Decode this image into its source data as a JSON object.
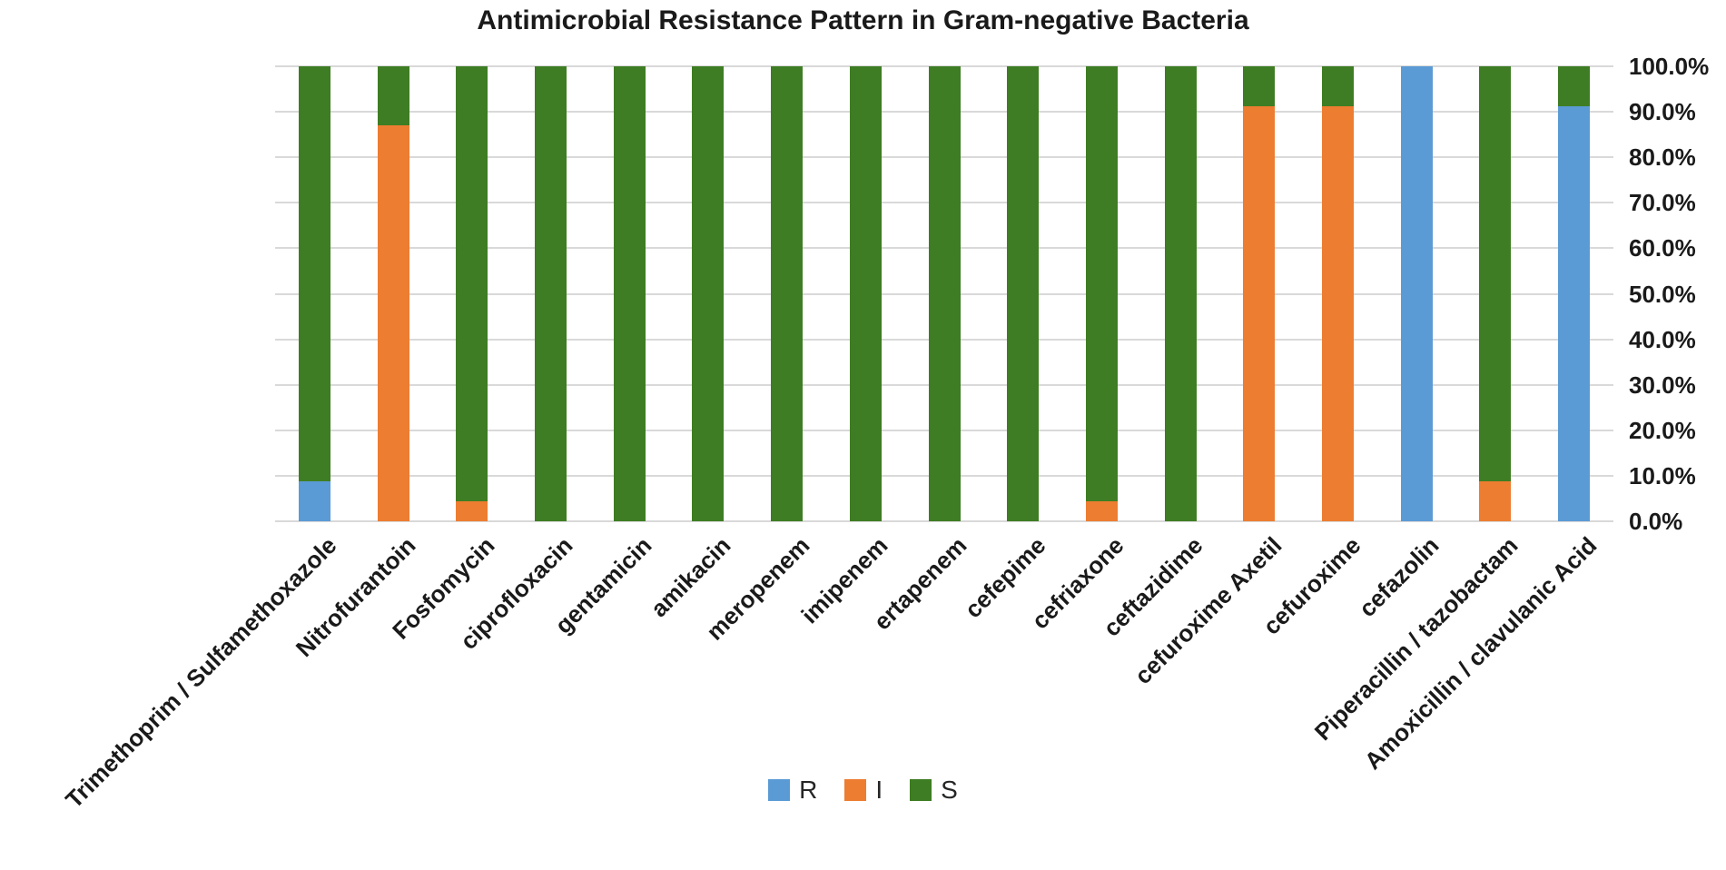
{
  "chart_data": {
    "type": "bar",
    "stacked": true,
    "title": "Antimicrobial Resistance Pattern in Gram-negative Bacteria",
    "categories": [
      "Trimethoprim / Sulfamethoxazole",
      "Nitrofurantoin",
      "Fosfomycin",
      "ciprofloxacin",
      "gentamicin",
      "amikacin",
      "meropenem",
      "imipenem",
      "ertapenem",
      "cefepime",
      "cefriaxone",
      "ceftazidime",
      "cefuroxime Axetil",
      "cefuroxime",
      "cefazolin",
      "Piperacillin / tazobactam",
      "Amoxicillin / clavulanic Acid"
    ],
    "series": [
      {
        "name": "R",
        "color": "#5B9BD5",
        "values": [
          8.7,
          0,
          0,
          0,
          0,
          0,
          0,
          0,
          0,
          0,
          0,
          0,
          0,
          0,
          100,
          0,
          91.3
        ]
      },
      {
        "name": "I",
        "color": "#ED7D31",
        "values": [
          0,
          87.0,
          4.3,
          0,
          0,
          0,
          0,
          0,
          0,
          0,
          4.3,
          0,
          91.3,
          91.3,
          0,
          8.7,
          0
        ]
      },
      {
        "name": "S",
        "color": "#3E7D23",
        "values": [
          91.3,
          13.0,
          95.7,
          100,
          100,
          100,
          100,
          100,
          100,
          100,
          95.7,
          100,
          8.7,
          8.7,
          0,
          91.3,
          8.7
        ]
      }
    ],
    "stack_order_bottom_to_top": [
      "R",
      "I",
      "S"
    ],
    "value_unit": "%",
    "ylim": [
      0,
      100
    ],
    "y_tick_step": 10,
    "y_tick_labels": [
      "100.0%",
      "90.0%",
      "80.0%",
      "70.0%",
      "60.0%",
      "50.0%",
      "40.0%",
      "30.0%",
      "20.0%",
      "10.0%",
      "0.0%"
    ],
    "y_axis_side": "right",
    "xlabel": "",
    "ylabel": "",
    "grid": true,
    "gridline_color": "#D9D9D9",
    "background_color": "#FFFFFF",
    "text_color": "#1A1A1A",
    "legend_position": "bottom",
    "legend_labels": [
      "R",
      "I",
      "S"
    ]
  }
}
